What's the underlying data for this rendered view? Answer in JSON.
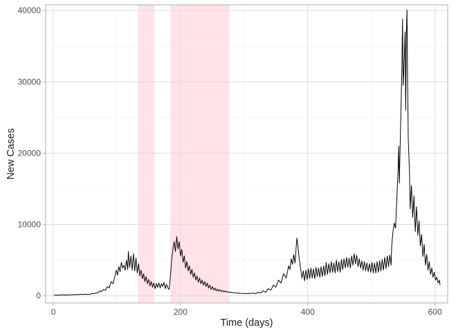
{
  "chart_data": {
    "type": "line",
    "xlabel": "Time (days)",
    "ylabel": "New Cases",
    "xlim": [
      -12,
      620
    ],
    "ylim": [
      -1000,
      40800
    ],
    "x_ticks": [
      0,
      200,
      400,
      600
    ],
    "y_ticks": [
      0,
      10000,
      20000,
      30000,
      40000
    ],
    "x_tick_labels": [
      "0",
      "200",
      "400",
      "600"
    ],
    "y_tick_labels": [
      "0",
      "10000",
      "20000",
      "30000",
      "40000"
    ],
    "grid": true,
    "line_color": "#000000",
    "shade_color": "#ff7f8c",
    "shaded_intervals": [
      [
        133,
        159
      ],
      [
        184,
        277
      ]
    ],
    "series": [
      {
        "points": [
          [
            1,
            100
          ],
          [
            4,
            80
          ],
          [
            7,
            120
          ],
          [
            10,
            90
          ],
          [
            13,
            150
          ],
          [
            16,
            110
          ],
          [
            19,
            130
          ],
          [
            22,
            100
          ],
          [
            25,
            160
          ],
          [
            28,
            120
          ],
          [
            31,
            180
          ],
          [
            34,
            140
          ],
          [
            37,
            200
          ],
          [
            40,
            160
          ],
          [
            43,
            220
          ],
          [
            46,
            170
          ],
          [
            49,
            240
          ],
          [
            52,
            200
          ],
          [
            55,
            230
          ],
          [
            58,
            190
          ],
          [
            61,
            330
          ],
          [
            64,
            280
          ],
          [
            67,
            420
          ],
          [
            70,
            380
          ],
          [
            73,
            700
          ],
          [
            76,
            580
          ],
          [
            79,
            900
          ],
          [
            82,
            780
          ],
          [
            85,
            1300
          ],
          [
            88,
            1100
          ],
          [
            91,
            2000
          ],
          [
            94,
            1700
          ],
          [
            97,
            2800
          ],
          [
            99,
            3600
          ],
          [
            101,
            2900
          ],
          [
            103,
            4100
          ],
          [
            105,
            3400
          ],
          [
            107,
            4700
          ],
          [
            109,
            3900
          ],
          [
            111,
            4300
          ],
          [
            113,
            3600
          ],
          [
            115,
            5000
          ],
          [
            117,
            3700
          ],
          [
            118,
            6200
          ],
          [
            120,
            4000
          ],
          [
            122,
            5600
          ],
          [
            124,
            3600
          ],
          [
            126,
            5900
          ],
          [
            128,
            3500
          ],
          [
            130,
            5300
          ],
          [
            132,
            3200
          ],
          [
            134,
            4500
          ],
          [
            136,
            2800
          ],
          [
            138,
            3600
          ],
          [
            140,
            2400
          ],
          [
            142,
            3100
          ],
          [
            144,
            2000
          ],
          [
            146,
            2700
          ],
          [
            148,
            1700
          ],
          [
            150,
            2300
          ],
          [
            152,
            1400
          ],
          [
            154,
            2000
          ],
          [
            156,
            1200
          ],
          [
            158,
            1800
          ],
          [
            160,
            1000
          ],
          [
            162,
            1700
          ],
          [
            164,
            1200
          ],
          [
            166,
            1800
          ],
          [
            168,
            1100
          ],
          [
            170,
            1700
          ],
          [
            172,
            1300
          ],
          [
            174,
            1900
          ],
          [
            176,
            1000
          ],
          [
            178,
            1600
          ],
          [
            180,
            1100
          ],
          [
            182,
            900
          ],
          [
            184,
            2600
          ],
          [
            186,
            5000
          ],
          [
            188,
            6500
          ],
          [
            190,
            7600
          ],
          [
            192,
            6200
          ],
          [
            194,
            8300
          ],
          [
            196,
            6600
          ],
          [
            198,
            7600
          ],
          [
            200,
            5600
          ],
          [
            202,
            6500
          ],
          [
            204,
            4700
          ],
          [
            206,
            5600
          ],
          [
            208,
            3900
          ],
          [
            210,
            4800
          ],
          [
            212,
            3500
          ],
          [
            214,
            4200
          ],
          [
            216,
            3000
          ],
          [
            218,
            3700
          ],
          [
            220,
            2600
          ],
          [
            222,
            3200
          ],
          [
            224,
            2200
          ],
          [
            226,
            2800
          ],
          [
            228,
            1900
          ],
          [
            230,
            2500
          ],
          [
            232,
            1700
          ],
          [
            234,
            2200
          ],
          [
            236,
            1500
          ],
          [
            238,
            2000
          ],
          [
            240,
            1300
          ],
          [
            242,
            1800
          ],
          [
            244,
            1100
          ],
          [
            246,
            1500
          ],
          [
            248,
            900
          ],
          [
            250,
            1300
          ],
          [
            252,
            800
          ],
          [
            254,
            1100
          ],
          [
            256,
            700
          ],
          [
            258,
            950
          ],
          [
            260,
            650
          ],
          [
            262,
            850
          ],
          [
            264,
            600
          ],
          [
            266,
            750
          ],
          [
            268,
            550
          ],
          [
            270,
            680
          ],
          [
            272,
            520
          ],
          [
            274,
            600
          ],
          [
            276,
            480
          ],
          [
            278,
            520
          ],
          [
            282,
            450
          ],
          [
            286,
            400
          ],
          [
            290,
            380
          ],
          [
            294,
            350
          ],
          [
            298,
            330
          ],
          [
            302,
            300
          ],
          [
            306,
            350
          ],
          [
            310,
            320
          ],
          [
            314,
            380
          ],
          [
            318,
            300
          ],
          [
            322,
            500
          ],
          [
            326,
            400
          ],
          [
            330,
            700
          ],
          [
            334,
            500
          ],
          [
            338,
            1000
          ],
          [
            342,
            800
          ],
          [
            346,
            1500
          ],
          [
            350,
            1200
          ],
          [
            354,
            2200
          ],
          [
            358,
            1800
          ],
          [
            362,
            3100
          ],
          [
            366,
            2500
          ],
          [
            370,
            4200
          ],
          [
            372,
            3700
          ],
          [
            374,
            5200
          ],
          [
            376,
            4400
          ],
          [
            378,
            5800
          ],
          [
            380,
            4600
          ],
          [
            382,
            7100
          ],
          [
            383,
            8100
          ],
          [
            385,
            6500
          ],
          [
            387,
            4900
          ],
          [
            389,
            3600
          ],
          [
            391,
            2500
          ],
          [
            393,
            3500
          ],
          [
            395,
            2100
          ],
          [
            397,
            3600
          ],
          [
            399,
            2300
          ],
          [
            401,
            3800
          ],
          [
            403,
            2400
          ],
          [
            405,
            3900
          ],
          [
            407,
            2500
          ],
          [
            409,
            3800
          ],
          [
            411,
            2400
          ],
          [
            413,
            4000
          ],
          [
            415,
            2700
          ],
          [
            417,
            3900
          ],
          [
            419,
            2600
          ],
          [
            421,
            4100
          ],
          [
            423,
            2700
          ],
          [
            425,
            4200
          ],
          [
            427,
            2800
          ],
          [
            429,
            4700
          ],
          [
            431,
            3000
          ],
          [
            433,
            4500
          ],
          [
            435,
            3200
          ],
          [
            437,
            4800
          ],
          [
            439,
            3300
          ],
          [
            441,
            4600
          ],
          [
            443,
            3200
          ],
          [
            445,
            5000
          ],
          [
            447,
            3400
          ],
          [
            449,
            4800
          ],
          [
            451,
            3300
          ],
          [
            453,
            5100
          ],
          [
            455,
            3700
          ],
          [
            457,
            5200
          ],
          [
            459,
            3900
          ],
          [
            461,
            5400
          ],
          [
            463,
            4000
          ],
          [
            465,
            5300
          ],
          [
            467,
            3900
          ],
          [
            469,
            5600
          ],
          [
            471,
            4300
          ],
          [
            473,
            5900
          ],
          [
            475,
            4500
          ],
          [
            477,
            5700
          ],
          [
            479,
            4100
          ],
          [
            481,
            5200
          ],
          [
            483,
            3900
          ],
          [
            485,
            4900
          ],
          [
            487,
            3600
          ],
          [
            489,
            4800
          ],
          [
            491,
            3500
          ],
          [
            493,
            4600
          ],
          [
            495,
            3400
          ],
          [
            497,
            4500
          ],
          [
            499,
            3300
          ],
          [
            501,
            4700
          ],
          [
            503,
            3200
          ],
          [
            505,
            4600
          ],
          [
            507,
            3200
          ],
          [
            509,
            4800
          ],
          [
            511,
            3300
          ],
          [
            513,
            4900
          ],
          [
            515,
            3500
          ],
          [
            517,
            5100
          ],
          [
            519,
            3600
          ],
          [
            521,
            5400
          ],
          [
            523,
            3800
          ],
          [
            525,
            5600
          ],
          [
            527,
            4100
          ],
          [
            529,
            5700
          ],
          [
            531,
            4300
          ],
          [
            532,
            7000
          ],
          [
            534,
            9000
          ],
          [
            536,
            10200
          ],
          [
            538,
            9500
          ],
          [
            540,
            13500
          ],
          [
            542,
            17500
          ],
          [
            543,
            21000
          ],
          [
            544,
            15800
          ],
          [
            546,
            24000
          ],
          [
            548,
            32000
          ],
          [
            549,
            38800
          ],
          [
            550,
            29500
          ],
          [
            552,
            34000
          ],
          [
            553,
            37000
          ],
          [
            554,
            26000
          ],
          [
            555,
            36800
          ],
          [
            556,
            40100
          ],
          [
            557,
            30000
          ],
          [
            558,
            22000
          ],
          [
            560,
            17200
          ],
          [
            561,
            12200
          ],
          [
            563,
            15500
          ],
          [
            565,
            11000
          ],
          [
            567,
            14000
          ],
          [
            569,
            9000
          ],
          [
            571,
            12500
          ],
          [
            573,
            8500
          ],
          [
            575,
            10500
          ],
          [
            577,
            7000
          ],
          [
            579,
            8600
          ],
          [
            581,
            5500
          ],
          [
            583,
            7200
          ],
          [
            585,
            4300
          ],
          [
            587,
            5800
          ],
          [
            589,
            3600
          ],
          [
            591,
            4800
          ],
          [
            593,
            3000
          ],
          [
            595,
            3900
          ],
          [
            597,
            2600
          ],
          [
            599,
            3300
          ],
          [
            601,
            2200
          ],
          [
            603,
            2600
          ],
          [
            605,
            1800
          ],
          [
            607,
            2200
          ],
          [
            608,
            1500
          ]
        ]
      }
    ]
  }
}
